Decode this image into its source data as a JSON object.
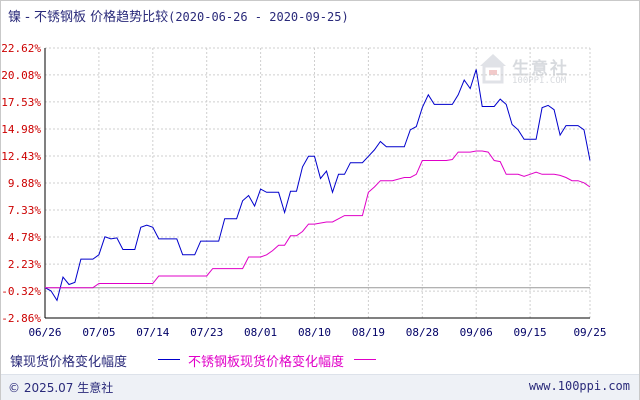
{
  "title": {
    "text": "镍 - 不锈钢板 价格趋势比较",
    "range": "(2020-06-26 - 2020-09-25)"
  },
  "colors": {
    "series1": "#0000cc",
    "series2": "#e000c8",
    "grid": "#cfcfcf",
    "axis": "#000000",
    "ylabel": "#cc0000",
    "xlabel": "#000066"
  },
  "watermark": {
    "brand": "生意社",
    "url": "100PPI.COM"
  },
  "footer": {
    "copyright": "© 2025.07 生意社",
    "site": "www.100ppi.com"
  },
  "chart_data": {
    "type": "line",
    "y_ticks": [
      "22.62%",
      "20.08%",
      "17.53%",
      "14.98%",
      "12.43%",
      "9.88%",
      "7.33%",
      "4.78%",
      "2.23%",
      "-0.32%",
      "-2.86%"
    ],
    "y_tick_values": [
      22.62,
      20.08,
      17.53,
      14.98,
      12.43,
      9.88,
      7.33,
      4.78,
      2.23,
      -0.32,
      -2.86
    ],
    "ylim": [
      -2.86,
      22.62
    ],
    "x_ticks": [
      "06/26",
      "07/05",
      "07/14",
      "07/23",
      "08/01",
      "08/10",
      "08/19",
      "08/28",
      "09/06",
      "09/15",
      "09/25"
    ],
    "x_tick_days": [
      0,
      9,
      18,
      27,
      36,
      45,
      54,
      63,
      72,
      81,
      91
    ],
    "xlim": [
      0,
      91
    ],
    "grid": true,
    "legend_position": "bottom-left",
    "series": [
      {
        "name": "镍现货价格变化幅度",
        "x": [
          0,
          1,
          2,
          3,
          4,
          5,
          6,
          7,
          8,
          9,
          10,
          11,
          12,
          13,
          14,
          15,
          16,
          17,
          18,
          19,
          20,
          21,
          22,
          23,
          24,
          25,
          26,
          27,
          28,
          29,
          30,
          31,
          32,
          33,
          34,
          35,
          36,
          37,
          38,
          39,
          40,
          41,
          42,
          43,
          44,
          45,
          46,
          47,
          48,
          49,
          50,
          51,
          52,
          53,
          54,
          55,
          56,
          57,
          58,
          59,
          60,
          61,
          62,
          63,
          64,
          65,
          66,
          67,
          68,
          69,
          70,
          71,
          72,
          73,
          74,
          75,
          76,
          77,
          78,
          79,
          80,
          81,
          82,
          83,
          84,
          85,
          86,
          87,
          88,
          89,
          90,
          91
        ],
        "values": [
          0,
          -0.3,
          -1.2,
          1,
          0.3,
          0.5,
          2.7,
          2.7,
          2.7,
          3.1,
          4.8,
          4.6,
          4.7,
          3.6,
          3.6,
          3.6,
          5.7,
          5.9,
          5.7,
          4.6,
          4.6,
          4.6,
          4.6,
          3.1,
          3.1,
          3.1,
          4.4,
          4.4,
          4.4,
          4.4,
          6.5,
          6.5,
          6.5,
          8.2,
          8.7,
          7.7,
          9.3,
          9.0,
          9.0,
          9.0,
          7.1,
          9.1,
          9.1,
          11.4,
          12.4,
          12.4,
          10.3,
          11.0,
          9.0,
          10.7,
          10.7,
          11.8,
          11.8,
          11.8,
          12.4,
          13.0,
          13.8,
          13.3,
          13.3,
          13.3,
          13.3,
          14.9,
          15.2,
          17.0,
          18.2,
          17.3,
          17.3,
          17.3,
          17.3,
          18.2,
          19.6,
          18.8,
          20.6,
          17.1,
          17.1,
          17.1,
          17.8,
          17.3,
          15.4,
          14.9,
          14.0,
          14.0,
          14.0,
          17.0,
          17.2,
          16.8,
          14.4,
          15.3,
          15.3,
          15.3,
          14.9,
          12.0
        ]
      },
      {
        "name": "不锈钢板现货价格变化幅度",
        "x": [
          0,
          8,
          9,
          18,
          19,
          27,
          28,
          33,
          34,
          36,
          37,
          38,
          39,
          40,
          41,
          42,
          43,
          44,
          45,
          47,
          48,
          50,
          51,
          53,
          54,
          55,
          56,
          57,
          58,
          60,
          61,
          62,
          63,
          64,
          65,
          66,
          67,
          68,
          69,
          70,
          71,
          72,
          73,
          74,
          75,
          76,
          77,
          78,
          79,
          80,
          81,
          82,
          83,
          84,
          85,
          86,
          87,
          88,
          89,
          90,
          91
        ],
        "values": [
          0,
          0,
          0.4,
          0.4,
          1.1,
          1.1,
          1.8,
          1.8,
          2.9,
          2.9,
          3.1,
          3.5,
          4.0,
          4.0,
          4.9,
          4.9,
          5.3,
          6.0,
          6.0,
          6.2,
          6.2,
          6.8,
          6.8,
          6.8,
          9.0,
          9.5,
          10.1,
          10.1,
          10.1,
          10.4,
          10.4,
          10.7,
          12.0,
          12.0,
          12.0,
          12.0,
          12.0,
          12.1,
          12.8,
          12.8,
          12.8,
          12.9,
          12.9,
          12.8,
          12.0,
          11.9,
          10.7,
          10.7,
          10.7,
          10.5,
          10.7,
          10.9,
          10.7,
          10.7,
          10.7,
          10.6,
          10.4,
          10.1,
          10.1,
          9.9,
          9.5
        ]
      }
    ]
  }
}
